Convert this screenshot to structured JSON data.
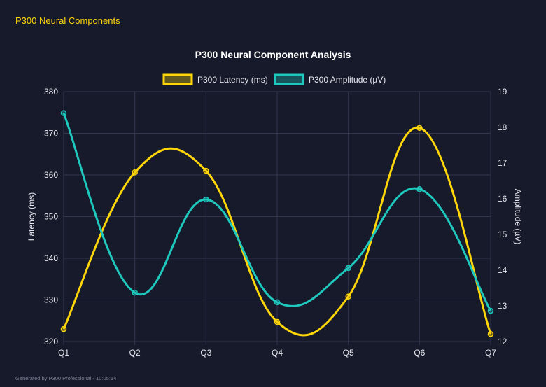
{
  "header": {
    "title": "P300 Neural Components"
  },
  "footer": {
    "text": "Generated by P300 Professional - 10:05:14"
  },
  "chart_data": {
    "type": "line",
    "title": "P300 Neural Component Analysis",
    "categories": [
      "Q1",
      "Q2",
      "Q3",
      "Q4",
      "Q5",
      "Q6",
      "Q7"
    ],
    "series": [
      {
        "name": "P300 Latency (ms)",
        "axis": "left",
        "color": "#ffd60a",
        "values": [
          323,
          360.6,
          361,
          324.7,
          330.8,
          371.3,
          321.8
        ]
      },
      {
        "name": "P300 Amplitude (µV)",
        "axis": "right",
        "color": "#1fc8bd",
        "values": [
          18.4,
          13.37,
          15.98,
          13.1,
          14.06,
          16.27,
          12.86
        ]
      }
    ],
    "y_left": {
      "label": "Latency (ms)",
      "range": [
        320,
        380
      ],
      "ticks": [
        320,
        330,
        340,
        350,
        360,
        370,
        380
      ]
    },
    "y_right": {
      "label": "Amplitude (µV)",
      "range": [
        12,
        19
      ],
      "ticks": [
        12,
        13,
        14,
        15,
        16,
        17,
        18,
        19
      ]
    },
    "grid": true,
    "legend": "top",
    "smooth": true
  }
}
